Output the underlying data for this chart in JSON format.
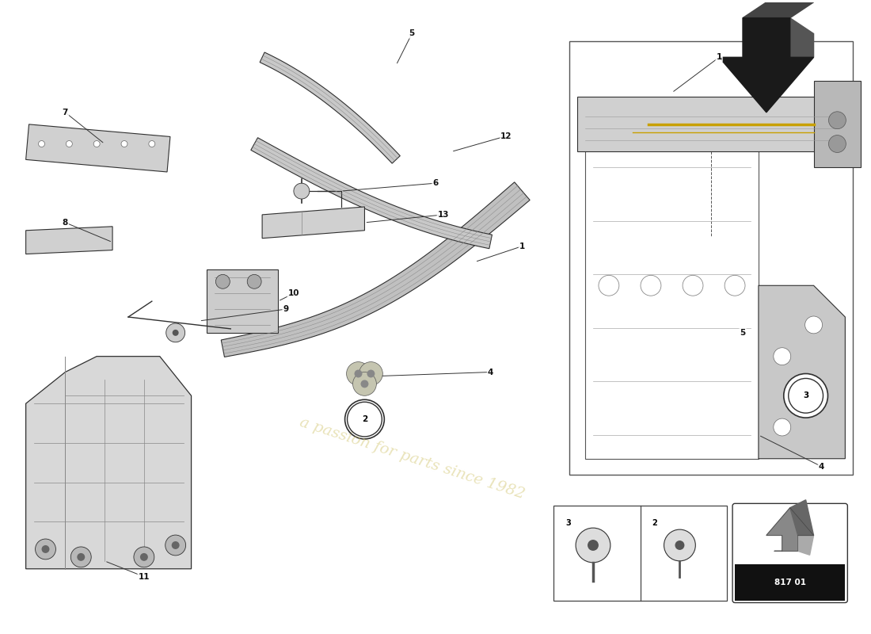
{
  "bg_color": "#ffffff",
  "watermark_text": "a passion for parts since 1982",
  "watermark_color": "#d4c875",
  "watermark_alpha": 0.5,
  "line_color": "#303030",
  "part_number_text": "817 01"
}
